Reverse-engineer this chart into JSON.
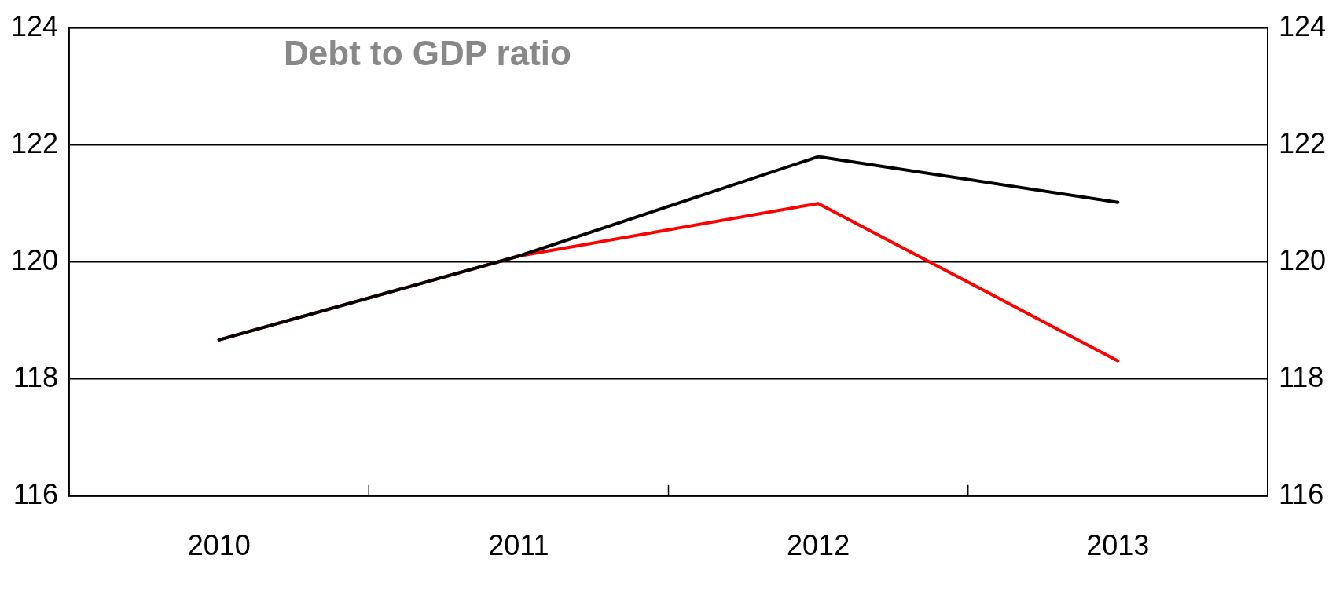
{
  "chart_data": {
    "type": "line",
    "title": "Debt to GDP ratio",
    "categories": [
      "2010",
      "2011",
      "2012",
      "2013"
    ],
    "series": [
      {
        "color": "#000000",
        "values": [
          118.67,
          120.1,
          121.8,
          121.02
        ]
      },
      {
        "color": "#ff0000",
        "values": [
          118.67,
          120.1,
          121.0,
          118.31
        ]
      }
    ],
    "ylim": [
      116,
      124
    ],
    "yticks": [
      116,
      118,
      120,
      122,
      124
    ],
    "y2lim": [
      116,
      124
    ],
    "y2ticks": [
      116,
      118,
      120,
      122,
      124
    ],
    "grid": "y",
    "legend": false,
    "marker": "none",
    "line_style": "solid"
  }
}
